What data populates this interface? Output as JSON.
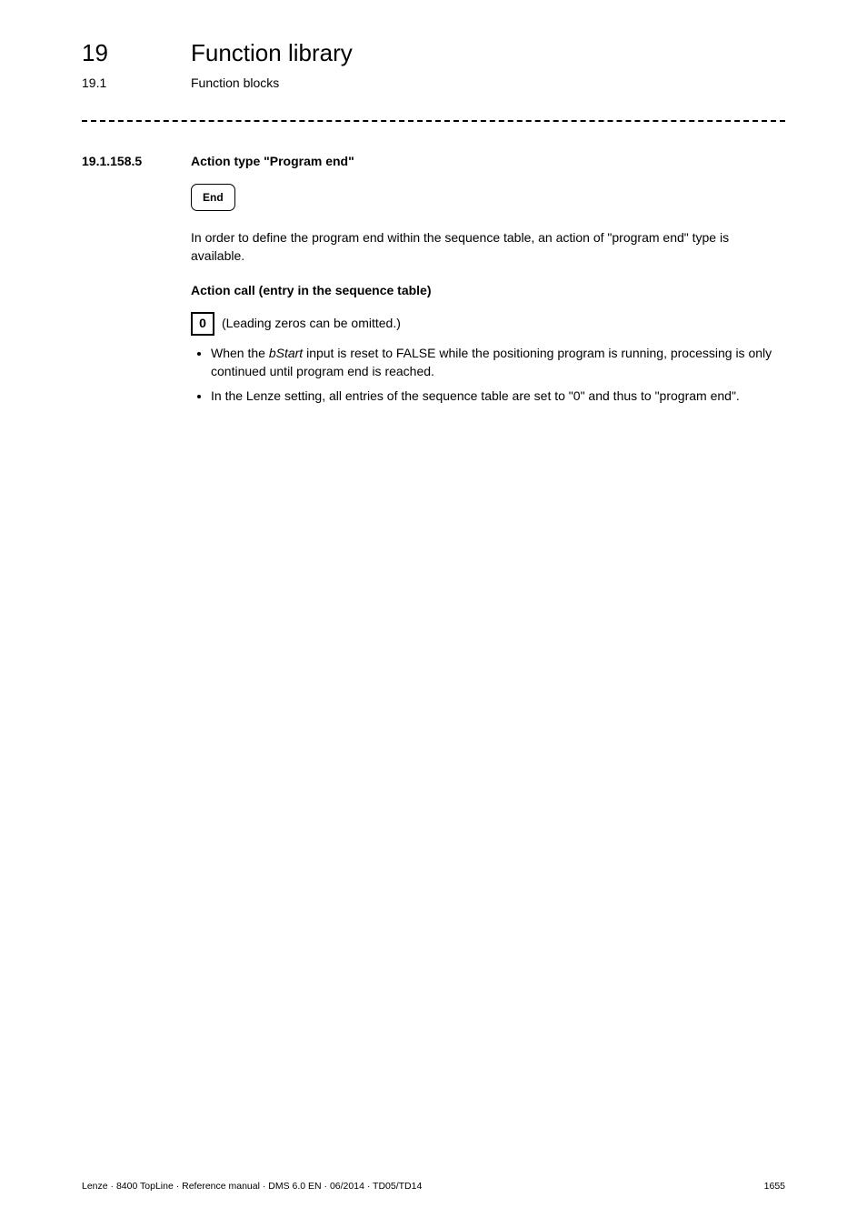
{
  "header": {
    "chapter_number": "19",
    "chapter_title": "Function library",
    "section_number": "19.1",
    "section_title": "Function blocks"
  },
  "section": {
    "number": "19.1.158.5",
    "title": "Action type \"Program end\""
  },
  "end_box_label": "End",
  "intro_paragraph": "In order to define the program end within the sequence table, an action of \"program end\" type is available.",
  "action_call_heading": "Action call (entry in the sequence table)",
  "zero_box_value": "0",
  "zero_box_note": "(Leading zeros can be omitted.)",
  "bullets": {
    "b0_pre": "When the ",
    "b0_em": "bStart",
    "b0_post": " input is reset to FALSE while the positioning program is running, processing is only continued until program end is reached.",
    "b1": "In the Lenze setting, all entries of the sequence table are set to \"0\" and thus to \"program end\"."
  },
  "footer": {
    "left": "Lenze · 8400 TopLine · Reference manual · DMS 6.0 EN · 06/2014 · TD05/TD14",
    "page": "1655"
  }
}
